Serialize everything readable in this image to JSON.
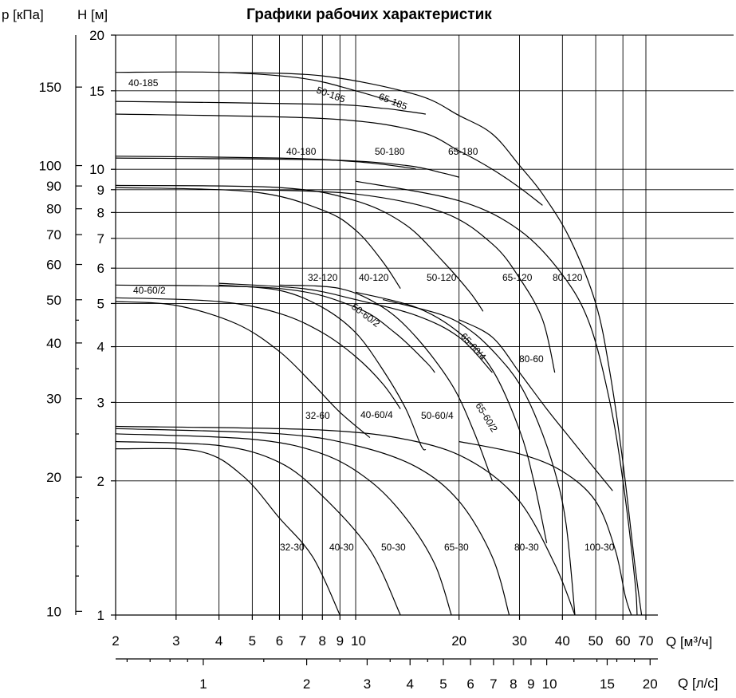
{
  "chart_data": {
    "type": "line",
    "title": "Графики рабочих характеристик",
    "ylabel_left": "p [кПа]",
    "ylabel": "H [м]",
    "xlabel": "Q [м³/ч]",
    "xlabel2": "Q [л/с]",
    "x_scale": "log",
    "y_scale": "log",
    "xlim": [
      2,
      70
    ],
    "ylim": [
      1,
      20
    ],
    "grid": true,
    "x_ticks": [
      "2",
      "3",
      "4",
      "5",
      "6",
      "7",
      "8",
      "9",
      "10",
      "20",
      "30",
      "40",
      "50",
      "60",
      "70"
    ],
    "y_ticks": [
      "1",
      "2",
      "3",
      "4",
      "5",
      "6",
      "7",
      "8",
      "9",
      "10",
      "15",
      "20"
    ],
    "p_ticks": [
      "10",
      "20",
      "30",
      "40",
      "50",
      "60",
      "70",
      "80",
      "90",
      "100",
      "150"
    ],
    "qls_ticks": [
      "1",
      "2",
      "3",
      "4",
      "5",
      "6",
      "7",
      "8",
      "9",
      "10",
      "15",
      "20"
    ],
    "series": [
      {
        "name": "32-30",
        "points": [
          [
            2.0,
            2.36
          ],
          [
            3.5,
            2.33
          ],
          [
            4.7,
            2.05
          ],
          [
            6.0,
            1.65
          ],
          [
            7.5,
            1.35
          ],
          [
            9.0,
            1.0
          ]
        ]
      },
      {
        "name": "40-30",
        "points": [
          [
            2.0,
            2.45
          ],
          [
            4.0,
            2.4
          ],
          [
            6.0,
            2.2
          ],
          [
            8.0,
            1.85
          ],
          [
            11.0,
            1.4
          ],
          [
            13.5,
            1.0
          ]
        ]
      },
      {
        "name": "50-30",
        "points": [
          [
            2.0,
            2.55
          ],
          [
            5.0,
            2.48
          ],
          [
            8.0,
            2.3
          ],
          [
            11.0,
            2.0
          ],
          [
            14.0,
            1.65
          ],
          [
            17.0,
            1.3
          ],
          [
            19.0,
            1.0
          ]
        ]
      },
      {
        "name": "65-30",
        "points": [
          [
            2.0,
            2.62
          ],
          [
            6.0,
            2.55
          ],
          [
            10.0,
            2.4
          ],
          [
            15.0,
            2.15
          ],
          [
            20.0,
            1.8
          ],
          [
            25.0,
            1.35
          ],
          [
            28.0,
            1.0
          ]
        ]
      },
      {
        "name": "80-30",
        "points": [
          [
            2.0,
            2.65
          ],
          [
            8.0,
            2.6
          ],
          [
            15.0,
            2.45
          ],
          [
            22.0,
            2.2
          ],
          [
            30.0,
            1.8
          ],
          [
            38.0,
            1.3
          ],
          [
            43.5,
            1.0
          ]
        ]
      },
      {
        "name": "100-30",
        "points": [
          [
            20.0,
            2.45
          ],
          [
            30.0,
            2.3
          ],
          [
            40.0,
            2.1
          ],
          [
            50.0,
            1.8
          ],
          [
            57.0,
            1.4
          ],
          [
            61.0,
            1.1
          ],
          [
            63.5,
            1.0
          ]
        ]
      },
      {
        "name": "32-60",
        "points": [
          [
            2.0,
            5.05
          ],
          [
            3.0,
            4.95
          ],
          [
            4.5,
            4.5
          ],
          [
            6.0,
            3.9
          ],
          [
            7.5,
            3.3
          ],
          [
            9.0,
            2.85
          ],
          [
            11.0,
            2.5
          ]
        ]
      },
      {
        "name": "40-60/2",
        "points": [
          [
            2.0,
            5.15
          ],
          [
            4.0,
            5.05
          ],
          [
            6.0,
            4.75
          ],
          [
            8.0,
            4.3
          ],
          [
            10.0,
            3.8
          ],
          [
            12.0,
            3.3
          ],
          [
            13.5,
            2.9
          ]
        ]
      },
      {
        "name": "40-60/4",
        "points": [
          [
            4.0,
            5.5
          ],
          [
            6.0,
            5.35
          ],
          [
            8.0,
            4.9
          ],
          [
            10.0,
            4.3
          ],
          [
            12.0,
            3.55
          ],
          [
            14.0,
            2.9
          ],
          [
            15.5,
            2.4
          ],
          [
            16.0,
            2.35
          ]
        ]
      },
      {
        "name": "50-60/2",
        "points": [
          [
            2.0,
            5.5
          ],
          [
            6.0,
            5.4
          ],
          [
            10.0,
            4.9
          ],
          [
            13.0,
            4.3
          ],
          [
            16.0,
            3.7
          ],
          [
            17.0,
            3.5
          ]
        ]
      },
      {
        "name": "50-60/4",
        "points": [
          [
            6.0,
            5.5
          ],
          [
            9.0,
            5.4
          ],
          [
            12.0,
            4.9
          ],
          [
            15.0,
            4.2
          ],
          [
            19.0,
            3.3
          ],
          [
            22.0,
            2.6
          ],
          [
            25.0,
            2.0
          ]
        ]
      },
      {
        "name": "65-60/2",
        "points": [
          [
            10.0,
            5.3
          ],
          [
            15.0,
            4.9
          ],
          [
            20.0,
            4.3
          ],
          [
            25.0,
            3.55
          ],
          [
            30.0,
            2.6
          ],
          [
            33.0,
            2.0
          ],
          [
            36.0,
            1.45
          ]
        ]
      },
      {
        "name": "65-60/4",
        "points": [
          [
            12.0,
            5.1
          ],
          [
            18.0,
            4.7
          ],
          [
            22.0,
            4.3
          ],
          [
            26.0,
            3.8
          ],
          [
            30.0,
            3.3
          ],
          [
            34.0,
            2.7
          ],
          [
            38.0,
            2.1
          ],
          [
            41.0,
            1.6
          ],
          [
            43.5,
            1.0
          ]
        ]
      },
      {
        "name": "80-60",
        "points": [
          [
            20.0,
            4.6
          ],
          [
            25.0,
            4.2
          ],
          [
            30.0,
            3.5
          ],
          [
            36.0,
            2.9
          ],
          [
            42.0,
            2.5
          ],
          [
            48.0,
            2.2
          ],
          [
            56.0,
            1.9
          ]
        ]
      },
      {
        "name": "40-120",
        "points": [
          [
            2.0,
            9.1
          ],
          [
            5.0,
            8.9
          ],
          [
            8.0,
            8.1
          ],
          [
            10.0,
            7.3
          ],
          [
            12.0,
            6.2
          ],
          [
            13.5,
            5.4
          ]
        ]
      },
      {
        "name": "50-120",
        "points": [
          [
            2.0,
            9.2
          ],
          [
            6.0,
            9.1
          ],
          [
            10.0,
            8.5
          ],
          [
            14.0,
            7.5
          ],
          [
            18.0,
            6.2
          ],
          [
            21.5,
            5.3
          ],
          [
            23.5,
            4.8
          ]
        ]
      },
      {
        "name": "65-120",
        "points": [
          [
            5.0,
            9.0
          ],
          [
            10.0,
            8.8
          ],
          [
            18.0,
            8.0
          ],
          [
            25.0,
            6.8
          ],
          [
            30.0,
            5.7
          ],
          [
            35.0,
            4.6
          ],
          [
            38.0,
            3.5
          ]
        ]
      },
      {
        "name": "80-120",
        "points": [
          [
            10.0,
            9.4
          ],
          [
            20.0,
            8.5
          ],
          [
            30.0,
            7.3
          ],
          [
            40.0,
            5.8
          ],
          [
            48.0,
            4.5
          ],
          [
            55.0,
            3.0
          ],
          [
            60.0,
            2.0
          ],
          [
            65.0,
            1.2
          ],
          [
            66.0,
            1.0
          ]
        ]
      },
      {
        "name": "32-120",
        "points": [
          [
            4.0,
            5.55
          ],
          [
            7.0,
            5.4
          ],
          [
            10.0,
            5.1
          ],
          [
            15.0,
            4.7
          ],
          [
            20.0,
            4.2
          ],
          [
            25.0,
            3.5
          ]
        ]
      },
      {
        "name": "40-180",
        "points": [
          [
            2.0,
            10.7
          ],
          [
            6.0,
            10.6
          ],
          [
            10.0,
            10.4
          ],
          [
            14.0,
            10.1
          ],
          [
            15.0,
            10.0
          ]
        ]
      },
      {
        "name": "50-180",
        "points": [
          [
            2.0,
            10.6
          ],
          [
            8.0,
            10.5
          ],
          [
            14.0,
            10.2
          ],
          [
            18.0,
            9.8
          ],
          [
            20.0,
            9.6
          ]
        ]
      },
      {
        "name": "65-180",
        "points": [
          [
            2.0,
            13.3
          ],
          [
            8.0,
            13.0
          ],
          [
            15.0,
            12.2
          ],
          [
            20.0,
            11.0
          ],
          [
            25.0,
            10.0
          ],
          [
            30.0,
            9.1
          ],
          [
            35.0,
            8.3
          ]
        ]
      },
      {
        "name": "40-185",
        "points": [
          [
            2.0,
            14.2
          ],
          [
            8.0,
            14.0
          ],
          [
            12.0,
            13.7
          ],
          [
            14.0,
            13.5
          ],
          [
            16.0,
            13.3
          ]
        ]
      },
      {
        "name": "50-185",
        "points": [
          [
            2.0,
            16.5
          ],
          [
            4.0,
            16.5
          ],
          [
            7.0,
            16.0
          ],
          [
            10.0,
            15.0
          ],
          [
            13.5,
            14.0
          ]
        ]
      },
      {
        "name": "65-185",
        "points": [
          [
            4.0,
            16.5
          ],
          [
            8.0,
            16.2
          ],
          [
            15.0,
            14.7
          ],
          [
            20.0,
            13.2
          ],
          [
            25.0,
            12.0
          ],
          [
            30.0,
            10.2
          ],
          [
            35.0,
            8.8
          ],
          [
            42.0,
            7.0
          ],
          [
            50.0,
            5.0
          ],
          [
            55.0,
            3.5
          ],
          [
            60.0,
            2.2
          ],
          [
            65.0,
            1.3
          ],
          [
            68.0,
            1.0
          ]
        ]
      }
    ]
  },
  "labels": {
    "l_32_30": "32-30",
    "l_40_30": "40-30",
    "l_50_30": "50-30",
    "l_65_30": "65-30",
    "l_80_30": "80-30",
    "l_100_30": "100-30",
    "l_32_60": "32-60",
    "l_40_60_4": "40-60/4",
    "l_50_60_4": "50-60/4",
    "l_65_60_2": "65-60/2",
    "l_65_60_4": "65-60/4",
    "l_80_60": "80-60",
    "l_50_60_2": "50-60/2",
    "l_40_60_2": "40-60/2",
    "l_32_120": "32-120",
    "l_40_120": "40-120",
    "l_50_120": "50-120",
    "l_65_120": "65-120",
    "l_80_120": "80-120",
    "l_40_180": "40-180",
    "l_50_180": "50-180",
    "l_65_180": "65-180",
    "l_40_185": "40-185",
    "l_50_185": "50-185",
    "l_65_185": "65-185"
  }
}
